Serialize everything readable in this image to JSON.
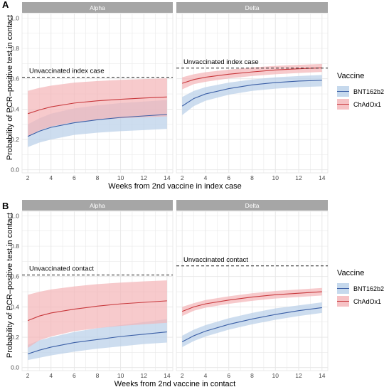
{
  "colors": {
    "bnt": "#3b5fa6",
    "chad": "#c8383c",
    "bnt_band": "#b8cfe8",
    "chad_band": "#f4b3b6",
    "strip_bg": "#a6a6a6",
    "panel_bg": "#ffffff",
    "grid": "#e6e6e6",
    "threshold": "#222222"
  },
  "chart_data": [
    {
      "type": "line",
      "panel_label": "A",
      "ylabel": "Probability of PCR–positive test in contact",
      "xlabel": "Weeks from 2nd vaccine in index case",
      "xlim": [
        1.5,
        14.5
      ],
      "ylim": [
        -0.02,
        1.03
      ],
      "x_ticks": [
        2,
        4,
        6,
        8,
        10,
        12,
        14
      ],
      "y_ticks": [
        0.0,
        0.2,
        0.4,
        0.6,
        0.8,
        1.0
      ],
      "y_tick_labels": [
        "0.0",
        "0.2",
        "0.4",
        "0.6",
        "0.8",
        "1.0"
      ],
      "grid": true,
      "legend": {
        "title": "Vaccine",
        "position": "right",
        "entries": [
          "BNT162b2",
          "ChAdOx1"
        ]
      },
      "x": [
        2,
        3,
        4,
        6,
        8,
        10,
        12,
        14
      ],
      "facets": [
        {
          "strip": "Alpha",
          "threshold": {
            "label": "Unvaccinated index case",
            "y": 0.61
          },
          "series": [
            {
              "name": "BNT162b2",
              "values": [
                0.22,
                0.255,
                0.28,
                0.31,
                0.33,
                0.345,
                0.355,
                0.365
              ],
              "lower": [
                0.15,
                0.18,
                0.2,
                0.23,
                0.245,
                0.255,
                0.262,
                0.27
              ],
              "upper": [
                0.3,
                0.34,
                0.37,
                0.405,
                0.425,
                0.44,
                0.45,
                0.46
              ]
            },
            {
              "name": "ChAdOx1",
              "values": [
                0.37,
                0.395,
                0.415,
                0.44,
                0.455,
                0.465,
                0.473,
                0.48
              ],
              "lower": [
                0.22,
                0.26,
                0.285,
                0.315,
                0.33,
                0.34,
                0.347,
                0.352
              ],
              "upper": [
                0.52,
                0.54,
                0.555,
                0.575,
                0.585,
                0.593,
                0.598,
                0.603
              ]
            }
          ]
        },
        {
          "strip": "Delta",
          "threshold": {
            "label": "Unvaccinated index case",
            "y": 0.67
          },
          "series": [
            {
              "name": "BNT162b2",
              "values": [
                0.42,
                0.47,
                0.5,
                0.535,
                0.56,
                0.575,
                0.585,
                0.59
              ],
              "lower": [
                0.36,
                0.42,
                0.455,
                0.495,
                0.52,
                0.535,
                0.545,
                0.55
              ],
              "upper": [
                0.48,
                0.52,
                0.545,
                0.575,
                0.595,
                0.61,
                0.618,
                0.625
              ]
            },
            {
              "name": "ChAdOx1",
              "values": [
                0.57,
                0.595,
                0.61,
                0.63,
                0.645,
                0.658,
                0.666,
                0.672
              ],
              "lower": [
                0.53,
                0.565,
                0.58,
                0.602,
                0.618,
                0.63,
                0.638,
                0.645
              ],
              "upper": [
                0.61,
                0.63,
                0.643,
                0.66,
                0.675,
                0.685,
                0.692,
                0.698
              ]
            }
          ]
        }
      ]
    },
    {
      "type": "line",
      "panel_label": "B",
      "ylabel": "Probability of PCR–positive test in contact",
      "xlabel": "Weeks from 2nd vaccine in contact",
      "xlim": [
        1.5,
        14.5
      ],
      "ylim": [
        -0.02,
        1.03
      ],
      "x_ticks": [
        2,
        4,
        6,
        8,
        10,
        12,
        14
      ],
      "y_ticks": [
        0.0,
        0.2,
        0.4,
        0.6,
        0.8,
        1.0
      ],
      "y_tick_labels": [
        "0.0",
        "0.2",
        "0.4",
        "0.6",
        "0.8",
        "1.0"
      ],
      "grid": true,
      "legend": {
        "title": "Vaccine",
        "position": "right",
        "entries": [
          "BNT162b2",
          "ChAdOx1"
        ]
      },
      "x": [
        2,
        3,
        4,
        6,
        8,
        10,
        12,
        14
      ],
      "facets": [
        {
          "strip": "Alpha",
          "threshold": {
            "label": "Unvaccinated contact",
            "y": 0.61
          },
          "series": [
            {
              "name": "BNT162b2",
              "values": [
                0.09,
                0.115,
                0.135,
                0.165,
                0.185,
                0.205,
                0.22,
                0.235
              ],
              "lower": [
                0.05,
                0.065,
                0.08,
                0.105,
                0.125,
                0.14,
                0.155,
                0.165
              ],
              "upper": [
                0.15,
                0.18,
                0.2,
                0.235,
                0.26,
                0.28,
                0.3,
                0.32
              ]
            },
            {
              "name": "ChAdOx1",
              "values": [
                0.31,
                0.34,
                0.36,
                0.385,
                0.405,
                0.42,
                0.43,
                0.44
              ],
              "lower": [
                0.13,
                0.18,
                0.205,
                0.24,
                0.26,
                0.275,
                0.285,
                0.295
              ],
              "upper": [
                0.48,
                0.5,
                0.515,
                0.535,
                0.55,
                0.56,
                0.568,
                0.575
              ]
            }
          ]
        },
        {
          "strip": "Delta",
          "threshold": {
            "label": "Unvaccinated contact",
            "y": 0.67
          },
          "series": [
            {
              "name": "BNT162b2",
              "values": [
                0.17,
                0.21,
                0.24,
                0.285,
                0.32,
                0.35,
                0.375,
                0.395
              ],
              "lower": [
                0.135,
                0.175,
                0.205,
                0.25,
                0.285,
                0.315,
                0.34,
                0.36
              ],
              "upper": [
                0.21,
                0.25,
                0.28,
                0.325,
                0.36,
                0.39,
                0.41,
                0.43
              ]
            },
            {
              "name": "ChAdOx1",
              "values": [
                0.37,
                0.4,
                0.42,
                0.445,
                0.465,
                0.48,
                0.49,
                0.5
              ],
              "lower": [
                0.34,
                0.375,
                0.395,
                0.42,
                0.44,
                0.455,
                0.465,
                0.475
              ],
              "upper": [
                0.4,
                0.425,
                0.445,
                0.47,
                0.49,
                0.505,
                0.515,
                0.525
              ]
            }
          ]
        }
      ]
    }
  ]
}
